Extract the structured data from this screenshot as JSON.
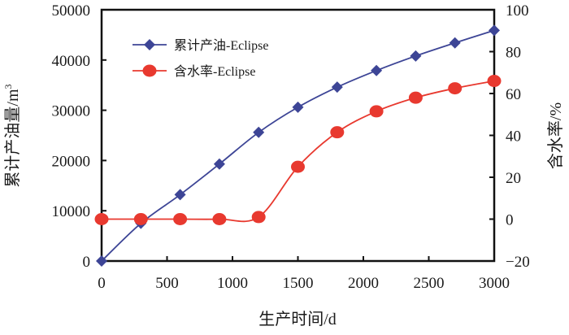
{
  "chart_data": {
    "type": "line",
    "title": "",
    "xlabel": "生产时间/d",
    "ylabel": "累计产油量/m³",
    "ylabel_main": "累计产油量/m",
    "ylabel_sup": "3",
    "y2label": "含水率/%",
    "xlim": [
      0,
      3000
    ],
    "ylim": [
      0,
      50000
    ],
    "y2lim": [
      -20,
      100
    ],
    "grid": false,
    "legend_position": "upper-left",
    "x_ticks": [
      0,
      500,
      1000,
      1500,
      2000,
      2500,
      3000
    ],
    "y_ticks": [
      0,
      10000,
      20000,
      30000,
      40000,
      50000
    ],
    "y2_ticks": [
      -20,
      0,
      20,
      40,
      60,
      80,
      100
    ],
    "x": [
      0,
      300,
      600,
      900,
      1200,
      1500,
      1800,
      2100,
      2400,
      2700,
      3000
    ],
    "series": [
      {
        "name": "累计产油-Eclipse",
        "axis": "left",
        "color": "#3d4596",
        "marker": "diamond",
        "values": [
          0,
          7500,
          13200,
          19300,
          25600,
          30600,
          34600,
          37900,
          40800,
          43400,
          45900
        ]
      },
      {
        "name": "含水率-Eclipse",
        "axis": "right",
        "color": "#e8392f",
        "marker": "circle",
        "values": [
          0,
          0,
          0,
          0,
          1,
          25,
          41.5,
          51.5,
          58,
          62.5,
          66
        ]
      }
    ]
  }
}
